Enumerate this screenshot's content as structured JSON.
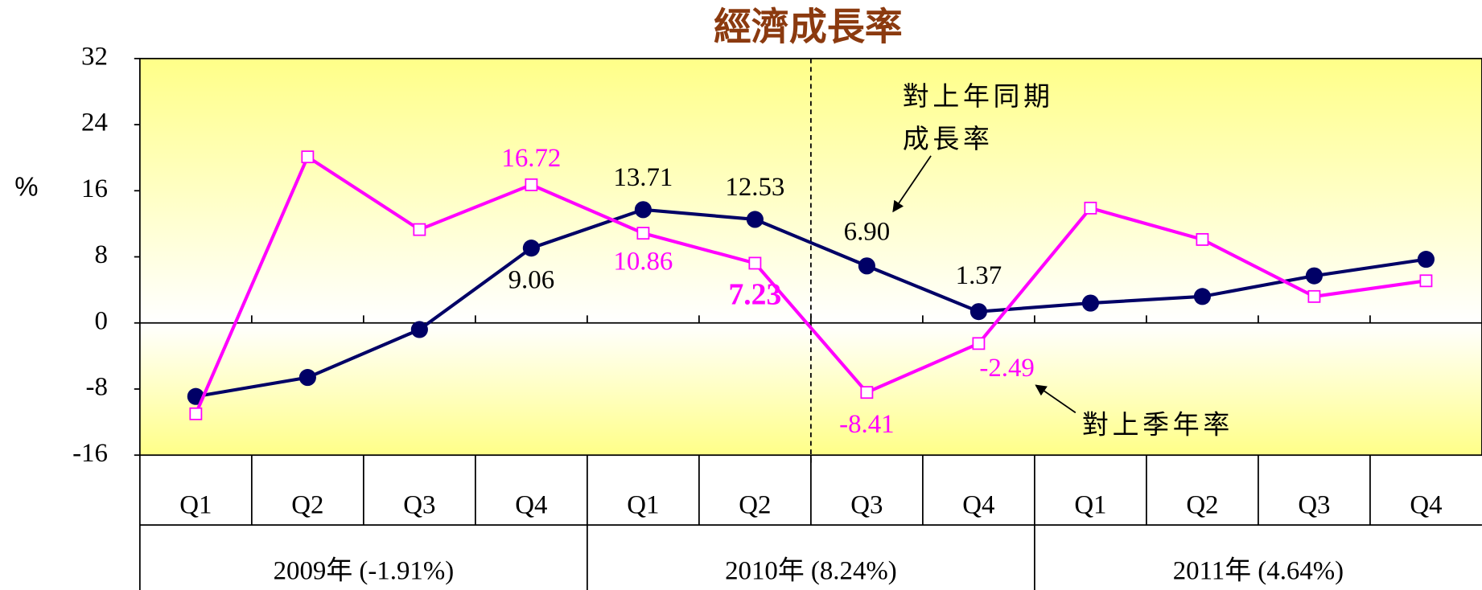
{
  "chart_data": {
    "type": "line",
    "title": "經濟成長率",
    "y_label": "%",
    "categories": [
      "Q1",
      "Q2",
      "Q3",
      "Q4",
      "Q1",
      "Q2",
      "Q3",
      "Q4",
      "Q1",
      "Q2",
      "Q3",
      "Q4"
    ],
    "year_groups": [
      "2009年 (-1.91%)",
      "2010年 (8.24%)",
      "2011年 (4.64%)"
    ],
    "ylim": [
      -16,
      32
    ],
    "yticks": [
      -16,
      -8,
      0,
      8,
      16,
      24,
      32
    ],
    "series": [
      {
        "color": "#000066",
        "values": [
          -8.9,
          -6.6,
          -0.8,
          9.06,
          13.71,
          12.53,
          6.9,
          1.37,
          2.4,
          3.2,
          5.7,
          7.7
        ],
        "value_labels": [
          null,
          null,
          null,
          "9.06",
          "13.71",
          "12.53",
          "6.90",
          "1.37",
          null,
          null,
          null,
          null
        ]
      },
      {
        "color": "#ff00ff",
        "values": [
          -11,
          20.1,
          11.3,
          16.72,
          10.86,
          7.23,
          -8.41,
          -2.49,
          13.9,
          10.1,
          3.2,
          5.1
        ],
        "value_labels": [
          null,
          null,
          null,
          "16.72",
          "10.86",
          "7.23",
          "-8.41",
          "-2.49",
          null,
          null,
          null,
          null
        ]
      }
    ],
    "annotations": [
      {
        "lines": [
          "對上年同期",
          "成長率"
        ]
      },
      {
        "lines": [
          "對上季年率"
        ]
      }
    ]
  }
}
